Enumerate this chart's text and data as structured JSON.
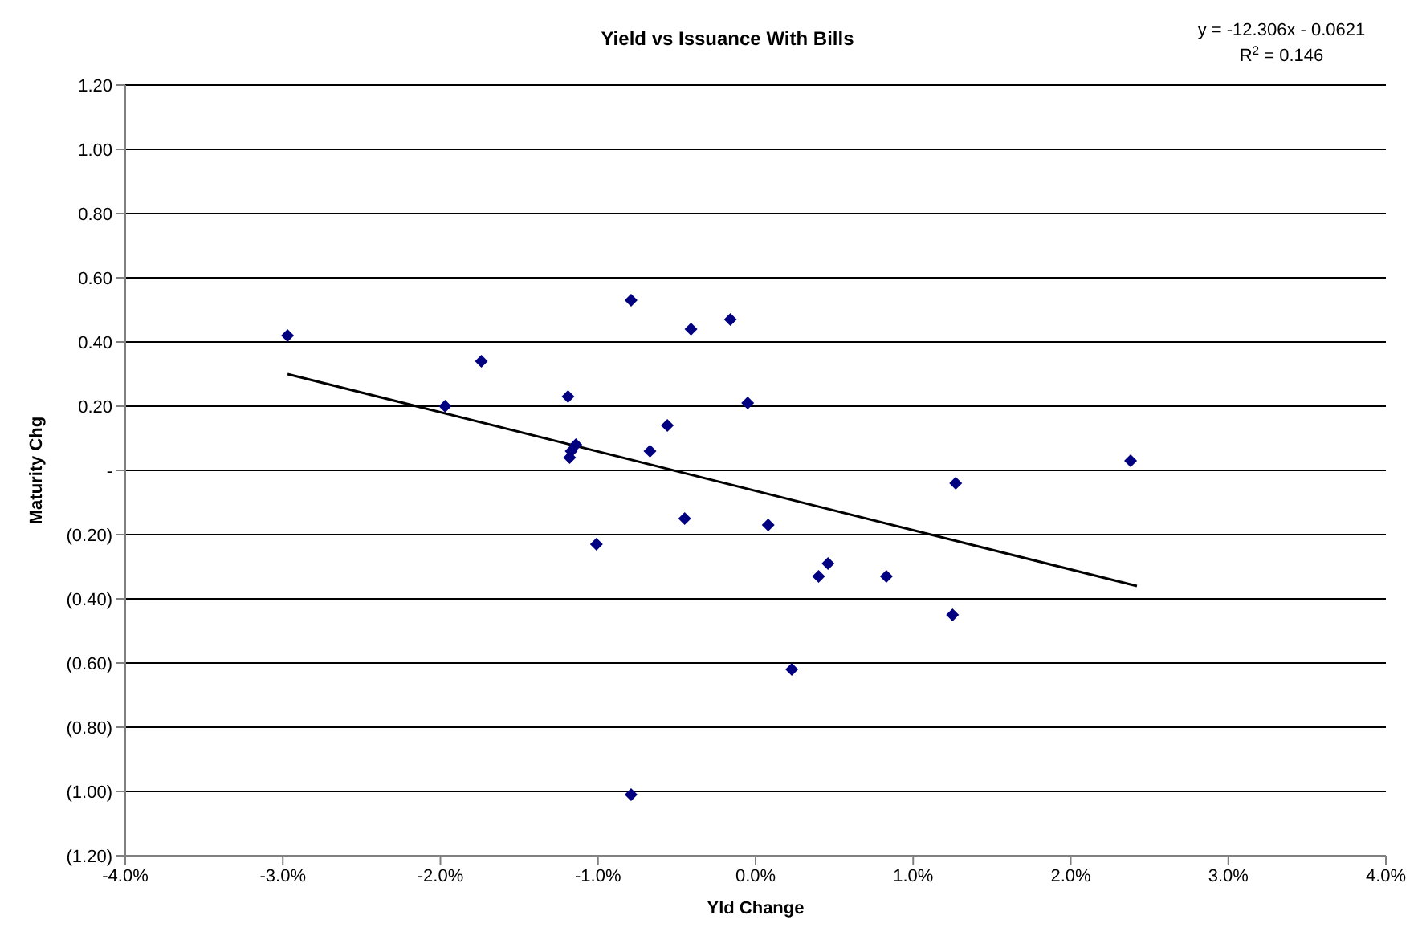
{
  "chart_data": {
    "type": "scatter",
    "title": "Yield vs Issuance With Bills",
    "xlabel": "Yld Change",
    "ylabel": "Maturity Chg",
    "annotations": [
      "y = -12.306x - 0.0621",
      "R$^{2}$ = 0.146"
    ],
    "series": [
      {
        "type": "scatter",
        "color": "#000080",
        "marker": "diamond",
        "x": [
          -2.97,
          -1.74,
          -1.97,
          -1.19,
          -0.79,
          -0.41,
          -0.16,
          -0.05,
          -0.56,
          -0.67,
          -1.14,
          -1.18,
          -1.17,
          -0.45,
          0.08,
          -1.01,
          2.38,
          1.27,
          0.46,
          0.4,
          0.83,
          1.25,
          0.23,
          -0.79
        ],
        "values": [
          0.42,
          0.34,
          0.2,
          0.23,
          0.53,
          0.44,
          0.47,
          0.21,
          0.14,
          0.06,
          0.08,
          0.04,
          0.06,
          -0.15,
          -0.17,
          -0.23,
          0.03,
          -0.04,
          -0.29,
          -0.33,
          -0.33,
          -0.45,
          -0.62,
          -1.01
        ]
      },
      {
        "type": "line",
        "color": "#000000",
        "x": [
          -2.97,
          2.42
        ],
        "values": [
          0.3,
          -0.36
        ]
      }
    ],
    "xlim": [
      -4,
      4
    ],
    "xticks": [
      {
        "value": -4,
        "label": "-4.0%"
      },
      {
        "value": -3,
        "label": "-3.0%"
      },
      {
        "value": -2,
        "label": "-2.0%"
      },
      {
        "value": -1,
        "label": "-1.0%"
      },
      {
        "value": 0,
        "label": "0.0%"
      },
      {
        "value": 1,
        "label": "1.0%"
      },
      {
        "value": 2,
        "label": "2.0%"
      },
      {
        "value": 3,
        "label": "3.0%"
      },
      {
        "value": 4,
        "label": "4.0%"
      }
    ],
    "ylim": [
      -1.2,
      1.2
    ],
    "yticks": [
      {
        "value": -1.2,
        "label": "(1.20)"
      },
      {
        "value": -1,
        "label": "(1.00)"
      },
      {
        "value": -0.8,
        "label": "(0.80)"
      },
      {
        "value": -0.6,
        "label": "(0.60)"
      },
      {
        "value": -0.4,
        "label": "(0.40)"
      },
      {
        "value": -0.2,
        "label": "(0.20)"
      },
      {
        "value": 0,
        "label": "-"
      },
      {
        "value": 0.2,
        "label": "0.20"
      },
      {
        "value": 0.4,
        "label": "0.40"
      },
      {
        "value": 0.6,
        "label": "0.60"
      },
      {
        "value": 0.8,
        "label": "0.80"
      },
      {
        "value": 1,
        "label": "1.00"
      },
      {
        "value": 1.2,
        "label": "1.20"
      }
    ],
    "grid": "y"
  }
}
